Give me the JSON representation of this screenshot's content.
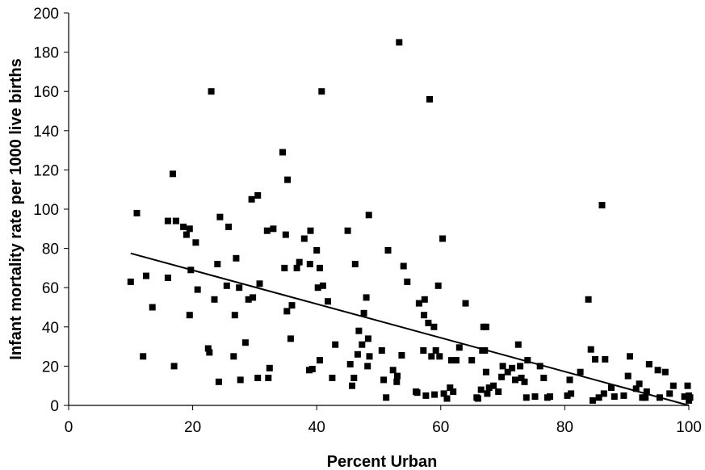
{
  "chart_data": {
    "type": "scatter",
    "title": "",
    "xlabel": "Percent Urban",
    "ylabel": "Infant mortality rate per 1000 live births",
    "xlim": [
      0,
      100
    ],
    "ylim": [
      0,
      200
    ],
    "x_ticks": [
      0,
      20,
      40,
      60,
      80,
      100
    ],
    "y_ticks": [
      0,
      20,
      40,
      60,
      80,
      100,
      120,
      140,
      160,
      180,
      200
    ],
    "grid": false,
    "legend": "none",
    "trendline": {
      "x": [
        10,
        100
      ],
      "y": [
        77.5,
        0
      ]
    },
    "points": [
      [
        10,
        63
      ],
      [
        11,
        98
      ],
      [
        12,
        25
      ],
      [
        12.5,
        66
      ],
      [
        13.5,
        50
      ],
      [
        16,
        65
      ],
      [
        16,
        94
      ],
      [
        16.8,
        118
      ],
      [
        17,
        20
      ],
      [
        17.3,
        94
      ],
      [
        18.5,
        91
      ],
      [
        19,
        87
      ],
      [
        19.5,
        46
      ],
      [
        19.7,
        69
      ],
      [
        19.5,
        90
      ],
      [
        20.5,
        83
      ],
      [
        20.8,
        59
      ],
      [
        22.5,
        29
      ],
      [
        22.7,
        27
      ],
      [
        23,
        160
      ],
      [
        23.5,
        54
      ],
      [
        24,
        72
      ],
      [
        24.2,
        12
      ],
      [
        24.4,
        96
      ],
      [
        25.5,
        61
      ],
      [
        25.8,
        91
      ],
      [
        26.6,
        25
      ],
      [
        26.8,
        46
      ],
      [
        27,
        75
      ],
      [
        27.5,
        60
      ],
      [
        27.7,
        13
      ],
      [
        28.5,
        32
      ],
      [
        29,
        54
      ],
      [
        29.7,
        55
      ],
      [
        29.5,
        105
      ],
      [
        30.5,
        14
      ],
      [
        30.5,
        107
      ],
      [
        30.8,
        62
      ],
      [
        32,
        89
      ],
      [
        32.2,
        14
      ],
      [
        32.4,
        19
      ],
      [
        33,
        90
      ],
      [
        34.5,
        129
      ],
      [
        34.8,
        70
      ],
      [
        35,
        87
      ],
      [
        35.2,
        48
      ],
      [
        35.3,
        115
      ],
      [
        35.8,
        34
      ],
      [
        36,
        51
      ],
      [
        36.8,
        70
      ],
      [
        37.2,
        73
      ],
      [
        38,
        85
      ],
      [
        38.8,
        18
      ],
      [
        38.9,
        72
      ],
      [
        39,
        89
      ],
      [
        39.3,
        18.5
      ],
      [
        40,
        79
      ],
      [
        40.2,
        60
      ],
      [
        40.5,
        70
      ],
      [
        40.5,
        23
      ],
      [
        40.8,
        160
      ],
      [
        41,
        61
      ],
      [
        41.8,
        53
      ],
      [
        42.5,
        14
      ],
      [
        43,
        31
      ],
      [
        45,
        89
      ],
      [
        45.4,
        21
      ],
      [
        45.7,
        10
      ],
      [
        46,
        14
      ],
      [
        46.2,
        72
      ],
      [
        46.6,
        26
      ],
      [
        46.8,
        38
      ],
      [
        47.3,
        31
      ],
      [
        47.6,
        47
      ],
      [
        48,
        55
      ],
      [
        48.2,
        20
      ],
      [
        48.3,
        34
      ],
      [
        48.4,
        97
      ],
      [
        48.5,
        25
      ],
      [
        50.5,
        28
      ],
      [
        50.8,
        13
      ],
      [
        51.2,
        4
      ],
      [
        51.5,
        79
      ],
      [
        52.3,
        18
      ],
      [
        52.9,
        12
      ],
      [
        53,
        15
      ],
      [
        53.3,
        185
      ],
      [
        53.7,
        25.5
      ],
      [
        54,
        71
      ],
      [
        54.6,
        63
      ],
      [
        56,
        7
      ],
      [
        56.2,
        6.5
      ],
      [
        56.5,
        52
      ],
      [
        57.2,
        28
      ],
      [
        57.3,
        46
      ],
      [
        57.4,
        54
      ],
      [
        57.6,
        5
      ],
      [
        58,
        42
      ],
      [
        58.2,
        156
      ],
      [
        58.5,
        25
      ],
      [
        58.9,
        40
      ],
      [
        59,
        5.5
      ],
      [
        59.2,
        28
      ],
      [
        59.6,
        61
      ],
      [
        59.8,
        25
      ],
      [
        60.3,
        85
      ],
      [
        60.5,
        6
      ],
      [
        61,
        3.5
      ],
      [
        61.5,
        9
      ],
      [
        61.7,
        23
      ],
      [
        62,
        7
      ],
      [
        62.5,
        23
      ],
      [
        63,
        29.5
      ],
      [
        64,
        52
      ],
      [
        65,
        23
      ],
      [
        65.8,
        4
      ],
      [
        66,
        3.5
      ],
      [
        66.5,
        8
      ],
      [
        66.7,
        28
      ],
      [
        66.9,
        40
      ],
      [
        67.1,
        28
      ],
      [
        67.3,
        40
      ],
      [
        67.3,
        17
      ],
      [
        67.5,
        6
      ],
      [
        67.8,
        9
      ],
      [
        68.5,
        10
      ],
      [
        69.3,
        7
      ],
      [
        69.8,
        14.5
      ],
      [
        70,
        20
      ],
      [
        70.8,
        17
      ],
      [
        71.5,
        19
      ],
      [
        72,
        13
      ],
      [
        72.5,
        31
      ],
      [
        72.8,
        20
      ],
      [
        73,
        14
      ],
      [
        73.5,
        12
      ],
      [
        74,
        23
      ],
      [
        73.8,
        4
      ],
      [
        75.2,
        4.5
      ],
      [
        76,
        20
      ],
      [
        76.6,
        14
      ],
      [
        77.2,
        4
      ],
      [
        77.6,
        4.5
      ],
      [
        80.4,
        5
      ],
      [
        80.8,
        13
      ],
      [
        81,
        6
      ],
      [
        82.5,
        17
      ],
      [
        83.8,
        54
      ],
      [
        84.2,
        28.5
      ],
      [
        84.5,
        2.5
      ],
      [
        84.9,
        23.5
      ],
      [
        85.5,
        4
      ],
      [
        86,
        102
      ],
      [
        86.3,
        6
      ],
      [
        86.5,
        23.5
      ],
      [
        87.5,
        9
      ],
      [
        88,
        4.5
      ],
      [
        89.5,
        5
      ],
      [
        90.2,
        15
      ],
      [
        90.5,
        25
      ],
      [
        91.5,
        8.5
      ],
      [
        92,
        11
      ],
      [
        92.5,
        4
      ],
      [
        93,
        4
      ],
      [
        93.2,
        7
      ],
      [
        93.6,
        21
      ],
      [
        95,
        18
      ],
      [
        95.3,
        4
      ],
      [
        96.2,
        17
      ],
      [
        96.9,
        6
      ],
      [
        97.5,
        10
      ],
      [
        99.3,
        4.5
      ],
      [
        99.8,
        10
      ],
      [
        100,
        5
      ],
      [
        100,
        2.5
      ],
      [
        100.2,
        4
      ]
    ]
  }
}
